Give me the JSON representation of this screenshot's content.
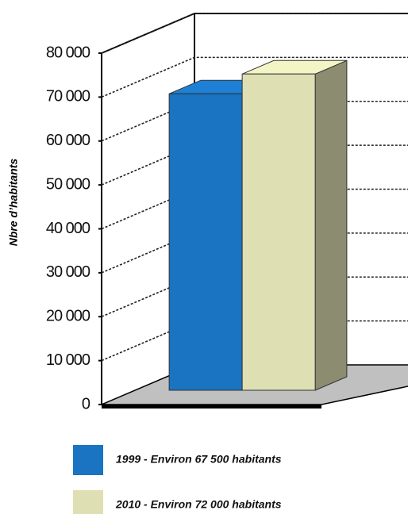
{
  "chart_data": {
    "type": "bar3d",
    "y_label": "Nbre d’habitants",
    "ylim": [
      0,
      80000
    ],
    "yticks": [
      0,
      {
        "value": 10000,
        "label": "10 000"
      },
      {
        "value": 20000,
        "label": "20 000"
      },
      {
        "value": 30000,
        "label": "30 000"
      },
      {
        "value": 40000,
        "label": "40 000"
      },
      {
        "value": 50000,
        "label": "50 000"
      },
      {
        "value": 60000,
        "label": "60 000"
      },
      {
        "value": 70000,
        "label": "70 000"
      },
      {
        "value": 80000,
        "label": "80 000"
      }
    ],
    "grid": true,
    "series": [
      {
        "name": "1999 - Environ 67 500 habitants",
        "color": "#1a74c2",
        "values": [
          67500
        ]
      },
      {
        "name": "2010 - Environ 72 000 habitants",
        "color": "#dedfb3",
        "values": [
          72000
        ]
      }
    ]
  }
}
